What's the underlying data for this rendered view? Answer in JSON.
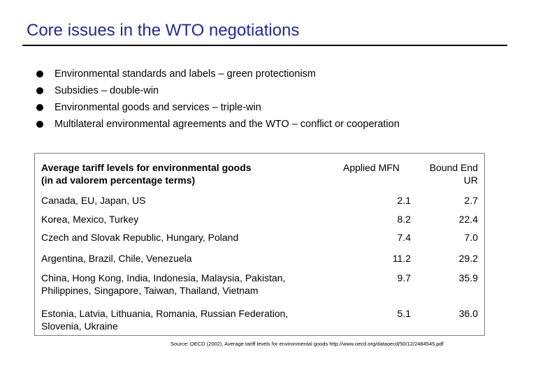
{
  "title": "Core issues in the WTO negotiations",
  "bullets": [
    "Environmental standards and labels – green protectionism",
    "Subsidies – double-win",
    "Environmental goods and services – triple-win",
    "Multilateral environmental agreements and the WTO – conflict or cooperation"
  ],
  "table": {
    "header": {
      "label_line1": "Average tariff levels for environmental goods",
      "label_line2": "(in ad valorem percentage terms)",
      "col_mfn": "Applied MFN",
      "col_bound_line1": "Bound End",
      "col_bound_line2": "UR"
    },
    "rows": [
      {
        "label_line1": "Canada, EU, Japan, US",
        "label_line2": "",
        "mfn": "2.1",
        "bound": "2.7"
      },
      {
        "label_line1": "Korea, Mexico, Turkey",
        "label_line2": "",
        "mfn": "8.2",
        "bound": "22.4"
      },
      {
        "label_line1": "Czech and Slovak Republic, Hungary, Poland",
        "label_line2": "",
        "mfn": "7.4",
        "bound": "7.0"
      },
      {
        "label_line1": "Argentina, Brazil, Chile, Venezuela",
        "label_line2": "",
        "mfn": "11.2",
        "bound": "29.2"
      },
      {
        "label_line1": "China, Hong Kong, India, Indonesia, Malaysia, Pakistan,",
        "label_line2": "Philippines, Singapore, Taiwan, Thailand, Vietnam",
        "mfn": "9.7",
        "bound": "35.9"
      },
      {
        "label_line1": "Estonia, Latvia, Lithuania, Romania, Russian Federation,",
        "label_line2": "Slovenia, Ukraine",
        "mfn": "5.1",
        "bound": "36.0"
      }
    ]
  },
  "source": "Source: OECD (2002), Average tariff levels for environmental goods http://www.oecd.org/dataoecd/50/12/2484545.pdf"
}
